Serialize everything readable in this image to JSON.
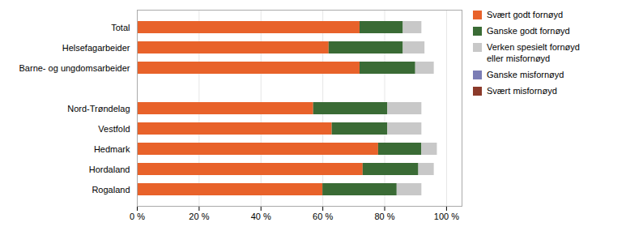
{
  "chart_data": {
    "type": "bar",
    "orientation": "horizontal",
    "stacked": true,
    "categories": [
      "Rogaland",
      "Hordaland",
      "Hedmark",
      "Vestfold",
      "Nord-Trøndelag",
      null,
      "Barne- og ungdomsarbeider",
      "Helsefagarbeider",
      "Total"
    ],
    "series": [
      {
        "name": "Svært godt fornøyd",
        "color": "#E8622A",
        "values": [
          60,
          73,
          78,
          63,
          57,
          0,
          72,
          62,
          72
        ]
      },
      {
        "name": "Ganske godt fornøyd",
        "color": "#3A6B35",
        "values": [
          24,
          18,
          14,
          18,
          24,
          0,
          18,
          24,
          14
        ]
      },
      {
        "name": "Verken spesielt fornøyd\neller misfornøyd",
        "color": "#C8C8C8",
        "values": [
          8,
          5,
          5,
          11,
          11,
          0,
          6,
          7,
          6
        ]
      },
      {
        "name": "Ganske misfornøyd",
        "color": "#7B7DB5",
        "values": [
          0,
          0,
          0,
          0,
          0,
          0,
          0,
          0,
          0
        ]
      },
      {
        "name": "Svært misfornøyd",
        "color": "#8B3A2A",
        "values": [
          0,
          0,
          0,
          0,
          0,
          0,
          0,
          0,
          0
        ]
      }
    ],
    "xlim": [
      0,
      105
    ],
    "xticks": [
      {
        "value": 0,
        "label": "0 %"
      },
      {
        "value": 20,
        "label": "20 %"
      },
      {
        "value": 40,
        "label": "40 %"
      },
      {
        "value": 60,
        "label": "60 %"
      },
      {
        "value": 80,
        "label": "80 %"
      },
      {
        "value": 100,
        "label": "100 %"
      }
    ],
    "grid": true,
    "legend": "right"
  }
}
